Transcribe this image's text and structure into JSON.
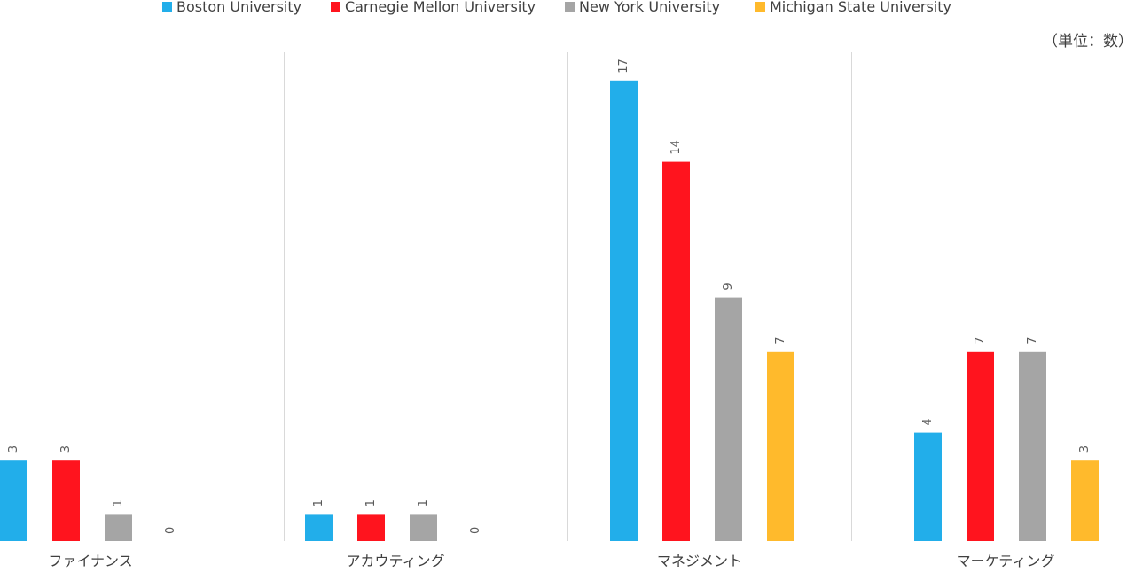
{
  "chart_data": {
    "type": "bar",
    "unit_note": "（単位：数）",
    "categories": [
      "ファイナンス",
      "アカウティング",
      "マネジメント",
      "マーケティング"
    ],
    "series": [
      {
        "name": "Boston University",
        "color": "#22AEEA",
        "values": [
          3,
          1,
          17,
          4
        ]
      },
      {
        "name": "Carnegie Mellon University",
        "color": "#FF141E",
        "values": [
          3,
          1,
          14,
          7
        ]
      },
      {
        "name": "New York University",
        "color": "#A5A5A5",
        "values": [
          1,
          1,
          9,
          7
        ]
      },
      {
        "name": "Michigan State University",
        "color": "#FFBA2C",
        "values": [
          0,
          0,
          7,
          3
        ]
      }
    ],
    "ylim": [
      0,
      18
    ],
    "legend_position": "top",
    "grid": false,
    "data_labels": true
  }
}
